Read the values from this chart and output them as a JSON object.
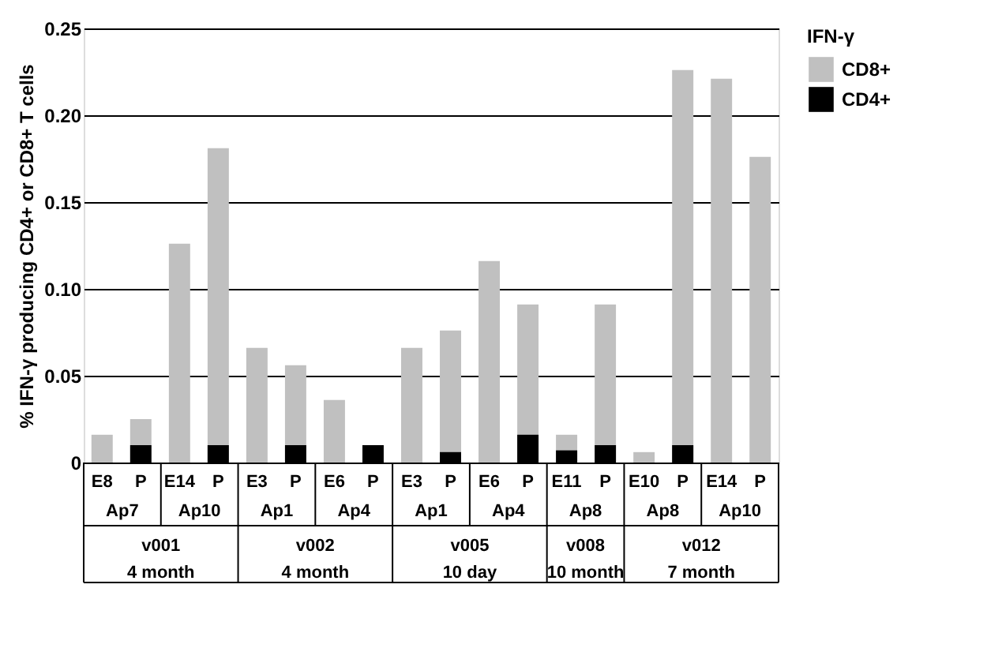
{
  "chart_data": {
    "type": "bar",
    "ylabel": "% IFN-γ producing CD4+ or CD8+ T cells",
    "legend_title": "IFN-γ",
    "categories": [
      "E8",
      "P",
      "E14",
      "P",
      "E3",
      "P",
      "E6",
      "P",
      "E3",
      "P",
      "E6",
      "P",
      "E11",
      "P",
      "E10",
      "P",
      "E14",
      "P"
    ],
    "series": [
      {
        "name": "CD8+",
        "color": "#c0c0c0",
        "values": [
          0.016,
          0.025,
          0.126,
          0.181,
          0.066,
          0.056,
          0.036,
          null,
          0.066,
          0.076,
          0.116,
          0.091,
          0.016,
          0.091,
          0.006,
          0.226,
          0.221,
          0.176
        ]
      },
      {
        "name": "CD4+",
        "color": "#000000",
        "values": [
          null,
          0.01,
          null,
          0.01,
          null,
          0.01,
          null,
          0.01,
          null,
          0.006,
          null,
          0.016,
          0.007,
          0.01,
          null,
          0.01,
          null,
          null
        ]
      }
    ],
    "ylim": [
      0,
      0.25
    ],
    "yticks": [
      0,
      0.05,
      {
        "value": 0.1,
        "label": "0.10"
      },
      0.15,
      {
        "value": 0.2,
        "label": "0.20"
      },
      0.25
    ],
    "grid": "y",
    "legend": "right",
    "annotations": [
      "Ap7",
      "Ap10",
      "Ap1",
      "Ap4",
      "Ap1",
      "Ap4",
      "Ap8",
      "Ap8",
      "Ap10",
      "v001",
      "4 month",
      "v002",
      "4 month",
      "v005",
      "10 day",
      "v008",
      "10 month",
      "v012",
      "7 month"
    ]
  }
}
